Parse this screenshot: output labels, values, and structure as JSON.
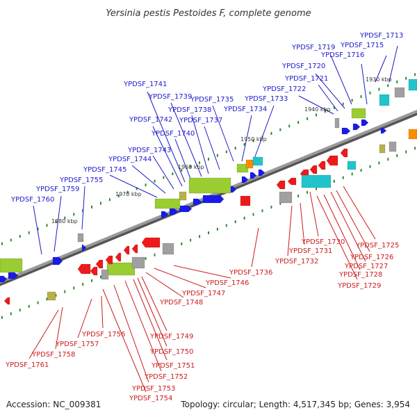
{
  "title": "Yersinia pestis Pestoides F, complete genome",
  "footer": {
    "accession": "Accession: NC_009381",
    "stats": "Topology: circular; Length: 4,517,345 bp; Genes: 3,954"
  },
  "colors": {
    "forward_label": "#1a1acc",
    "reverse_label": "#cc1a1a",
    "backbone": "#888888",
    "tick": "#2e8b2e",
    "gene_forward": "#1a1aee",
    "gene_reverse": "#ee1a1a",
    "gene_green": "#9acd32",
    "gene_cyan": "#22c4cc",
    "gene_gray": "#a0a0a0",
    "gene_orange": "#ff8c00",
    "gene_olive": "#b8b04a"
  },
  "kbp_markers": [
    "1930 kbp",
    "1940 kbp",
    "1950 kbp",
    "1960 kbp",
    "1970 kbp",
    "1980 kbp"
  ],
  "forward_labels": [
    "YPDSF_1713",
    "YPDSF_1715",
    "YPDSF_1716",
    "YPDSF_1719",
    "YPDSF_1720",
    "YPDSF_1721",
    "YPDSF_1722",
    "YPDSF_1733",
    "YPDSF_1734",
    "YPDSF_1735",
    "YPDSF_1737",
    "YPDSF_1738",
    "YPDSF_1739",
    "YPDSF_1740",
    "YPDSF_1741",
    "YPDSF_1742",
    "YPDSF_1743",
    "YPDSF_1744",
    "YPDSF_1745",
    "YPDSF_1755",
    "YPDSF_1759",
    "YPDSF_1760"
  ],
  "reverse_labels": [
    "YPDSF_1725",
    "YPDSF_1726",
    "YPDSF_1727",
    "YPDSF_1728",
    "YPDSF_1729",
    "YPDSF_1730",
    "YPDSF_1731",
    "YPDSF_1732",
    "YPDSF_1736",
    "YPDSF_1746",
    "YPDSF_1747",
    "YPDSF_1748",
    "YPDSF_1749",
    "YPDSF_1750",
    "YPDSF_1751",
    "YPDSF_1752",
    "YPDSF_1753",
    "YPDSF_1754",
    "YPDSF_1756",
    "YPDSF_1757",
    "YPDSF_1758",
    "YPDSF_1761"
  ]
}
